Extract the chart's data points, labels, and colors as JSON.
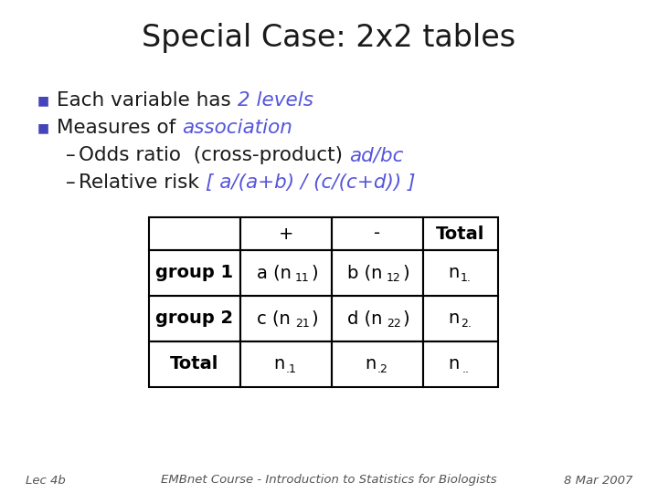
{
  "title": "Special Case: 2x2 tables",
  "title_fontsize": 24,
  "title_color": "#1a1a1a",
  "blue_color": "#5555dd",
  "black_color": "#1a1a1a",
  "bullet_color": "#4444bb",
  "footer_left": "Lec 4b",
  "footer_center": "EMBnet Course - Introduction to Statistics for Biologists",
  "footer_right": "8 Mar 2007",
  "footer_color": "#555555",
  "footer_fontsize": 9.5,
  "fs_body": 15.5,
  "fs_table": 14,
  "fs_table_sub": 9
}
